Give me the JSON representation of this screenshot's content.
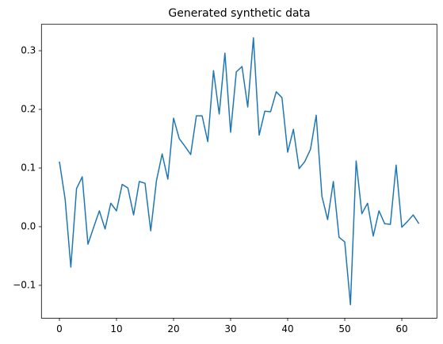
{
  "chart_data": {
    "type": "line",
    "title": "Generated synthetic data",
    "x": [
      0,
      1,
      2,
      3,
      4,
      5,
      6,
      7,
      8,
      9,
      10,
      11,
      12,
      13,
      14,
      15,
      16,
      17,
      18,
      19,
      20,
      21,
      22,
      23,
      24,
      25,
      26,
      27,
      28,
      29,
      30,
      31,
      32,
      33,
      34,
      35,
      36,
      37,
      38,
      39,
      40,
      41,
      42,
      43,
      44,
      45,
      46,
      47,
      48,
      49,
      50,
      51,
      52,
      53,
      54,
      55,
      56,
      57,
      58,
      59,
      60,
      61,
      62,
      63
    ],
    "series": [
      {
        "color": "#1f77b4",
        "values": [
          0.111,
          0.047,
          -0.069,
          0.065,
          0.085,
          -0.03,
          -0.001,
          0.027,
          -0.004,
          0.04,
          0.027,
          0.072,
          0.066,
          0.02,
          0.077,
          0.074,
          -0.007,
          0.078,
          0.124,
          0.081,
          0.185,
          0.15,
          0.137,
          0.123,
          0.189,
          0.189,
          0.145,
          0.266,
          0.192,
          0.296,
          0.161,
          0.264,
          0.273,
          0.204,
          0.322,
          0.156,
          0.197,
          0.196,
          0.23,
          0.22,
          0.127,
          0.166,
          0.099,
          0.111,
          0.132,
          0.19,
          0.052,
          0.012,
          0.077,
          -0.018,
          -0.026,
          -0.133,
          0.112,
          0.022,
          0.04,
          -0.016,
          0.027,
          0.005,
          0.004,
          0.105,
          -0.001,
          0.009,
          0.02,
          0.005
        ]
      }
    ],
    "xlim": [
      -3.15,
      66.15
    ],
    "ylim": [
      -0.156,
      0.345
    ],
    "xticks": [
      0,
      10,
      20,
      30,
      40,
      50,
      60
    ],
    "yticks": [
      {
        "value": -0.1,
        "label": "−0.1"
      },
      {
        "value": 0,
        "label": "0.0"
      },
      {
        "value": 0.1,
        "label": "0.1"
      },
      {
        "value": 0.2,
        "label": "0.2"
      },
      {
        "value": 0.3,
        "label": "0.3"
      }
    ],
    "grid": false
  }
}
